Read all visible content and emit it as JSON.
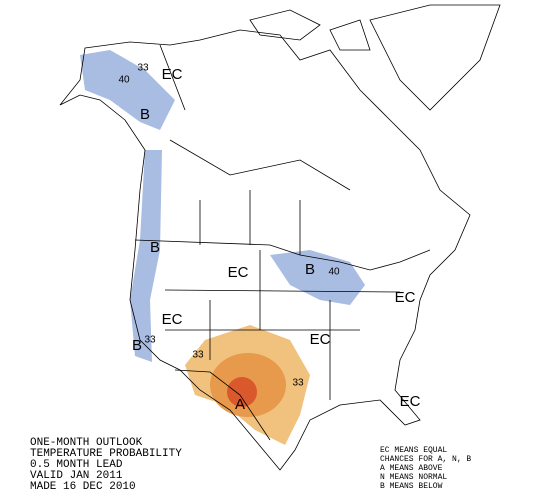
{
  "map_labels": [
    "33",
    "EC",
    "40",
    "B",
    "B",
    "EC",
    "B",
    "40",
    "EC",
    "EC",
    "EC",
    "B",
    "33",
    "33",
    "33",
    "A",
    "EC"
  ],
  "caption": {
    "lines": [
      "ONE-MONTH OUTLOOK",
      "TEMPERATURE PROBABILITY",
      "0.5 MONTH LEAD",
      "VALID JAN 2011",
      "MADE 16 DEC 2010"
    ]
  },
  "legend": {
    "lines": [
      "EC MEANS EQUAL",
      "CHANCES FOR A, N, B",
      "A MEANS ABOVE",
      "N MEANS NORMAL",
      "B MEANS BELOW"
    ]
  }
}
